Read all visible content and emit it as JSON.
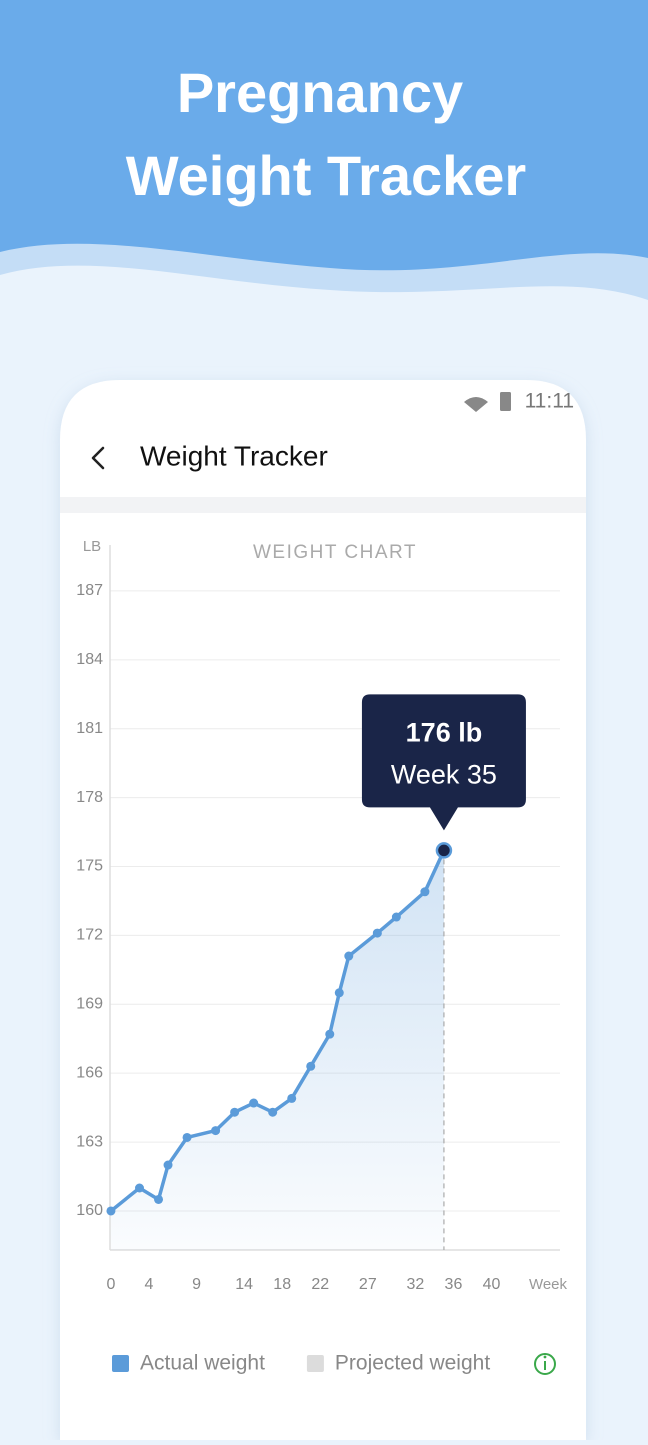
{
  "header": {
    "title_lines": [
      "Pregnancy",
      "Weight Tracker"
    ]
  },
  "status_bar": {
    "time": "11:11"
  },
  "app_bar": {
    "title": "Weight Tracker"
  },
  "chart_data": {
    "type": "line",
    "title": "WEIGHT CHART",
    "y_label": "LB",
    "x_label": "Week",
    "x": [
      0,
      3,
      5,
      6,
      8,
      11,
      13,
      15,
      17,
      19,
      21,
      23,
      24,
      25,
      28,
      30,
      33,
      35
    ],
    "series": [
      {
        "name": "Actual weight",
        "color": "#5b9bd9",
        "values": [
          160,
          161,
          160.5,
          162,
          163.2,
          163.5,
          164.3,
          164.7,
          164.3,
          164.9,
          166.3,
          167.7,
          169.5,
          171.1,
          172.1,
          172.8,
          173.9,
          175.7
        ]
      },
      {
        "name": "Projected weight",
        "color": "#dcdcdc",
        "values": [
          null,
          null,
          null,
          null,
          null,
          null,
          null,
          null,
          null,
          null,
          null,
          null,
          null,
          null,
          null,
          null,
          null,
          null
        ]
      }
    ],
    "xlim": [
      -0.1,
      47.2
    ],
    "xticks": [
      0,
      4,
      9,
      14,
      18,
      22,
      27,
      32,
      36,
      40
    ],
    "ylim": [
      158.3,
      189
    ],
    "yticks": [
      160,
      163,
      166,
      169,
      172,
      175,
      178,
      181,
      184,
      187
    ],
    "grid": true,
    "tooltip": {
      "value_label": "176 lb",
      "week_label": "Week 35"
    }
  }
}
